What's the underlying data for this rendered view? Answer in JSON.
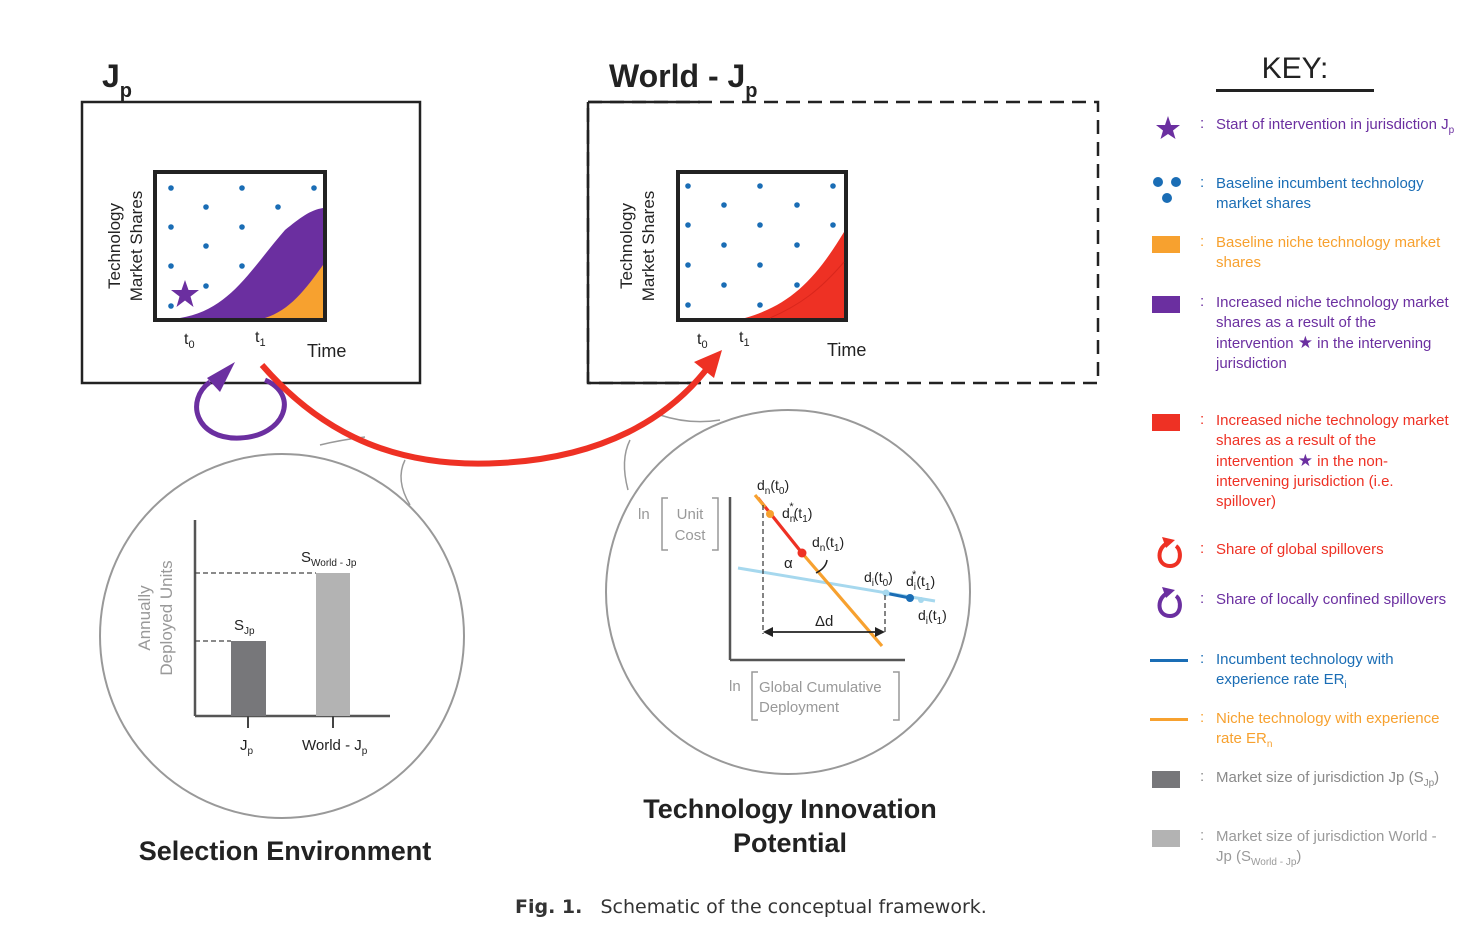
{
  "panel_left": {
    "title_main": "J",
    "title_sub": "p",
    "ylabel_line1": "Technology",
    "ylabel_line2": "Market Shares",
    "t0_main": "t",
    "t0_sub": "0",
    "t1_main": "t",
    "t1_sub": "1",
    "xlabel": "Time"
  },
  "panel_right": {
    "title_main": "World - J",
    "title_sub": "p",
    "ylabel_line1": "Technology",
    "ylabel_line2": "Market Shares",
    "t0_main": "t",
    "t0_sub": "0",
    "t1_main": "t",
    "t1_sub": "1",
    "xlabel": "Time"
  },
  "selection": {
    "title": "Selection Environment",
    "ylabel_line1": "Annually",
    "ylabel_line2": "Deployed Units",
    "bar1_label_main": "S",
    "bar1_label_sub": "Jp",
    "bar2_label_main": "S",
    "bar2_label_sub": "World - Jp",
    "x1_main": "J",
    "x1_sub": "p",
    "x2_main": "World - J",
    "x2_sub": "p"
  },
  "innovation": {
    "title_line1": "Technology Innovation",
    "title_line2": "Potential",
    "ylabel_ln": "ln",
    "ylabel_line1": "Unit",
    "ylabel_line2": "Cost",
    "xlabel_ln": "ln",
    "xlabel_line1": "Global Cumulative",
    "xlabel_line2": "Deployment",
    "dn_t0": "d",
    "alpha": "α",
    "delta_d": "Δd"
  },
  "key": {
    "title": "KEY:",
    "items": [
      {
        "text": "Start of intervention in jurisdiction J",
        "sub": "p",
        "color": "#6b2fa0"
      },
      {
        "text": "Baseline incumbent technology market shares",
        "color": "#1a6db5"
      },
      {
        "text": "Baseline niche technology market shares",
        "color": "#f7a12f"
      },
      {
        "text_before": "Increased niche technology market shares as a result of the intervention",
        "text_after": "in the intervening jurisdiction",
        "color": "#6b2fa0"
      },
      {
        "text_before": "Increased niche technology market shares as a result of the intervention",
        "text_after": "in the non-intervening jurisdiction (i.e. spillover)",
        "color": "#e8312a"
      },
      {
        "text": "Share of global spillovers",
        "color": "#e8312a"
      },
      {
        "text": "Share of locally confined spillovers",
        "color": "#6b2fa0"
      },
      {
        "text": "Incumbent technology with experience rate ER",
        "sub": "i",
        "color": "#1a6db5"
      },
      {
        "text": "Niche technology with experience rate ER",
        "sub": "n",
        "color": "#f7a12f"
      },
      {
        "text": "Market size of jurisdiction Jp (S",
        "sub": "Jp",
        "text_end": ")",
        "color": "#8a8a8a"
      },
      {
        "text": "Market size of jurisdiction World - Jp (S",
        "sub": "World - Jp",
        "text_end": ")",
        "color": "#9a9a9a"
      }
    ]
  },
  "caption": {
    "label": "Fig. 1.",
    "text": "Schematic of the conceptual framework."
  },
  "colors": {
    "purple": "#6b2fa0",
    "orange": "#f7a12f",
    "red": "#ee3124",
    "blue": "#1a6db5",
    "lightblue": "#a6d8ee",
    "darkgray": "#77777a",
    "lightgray": "#b3b3b3"
  }
}
